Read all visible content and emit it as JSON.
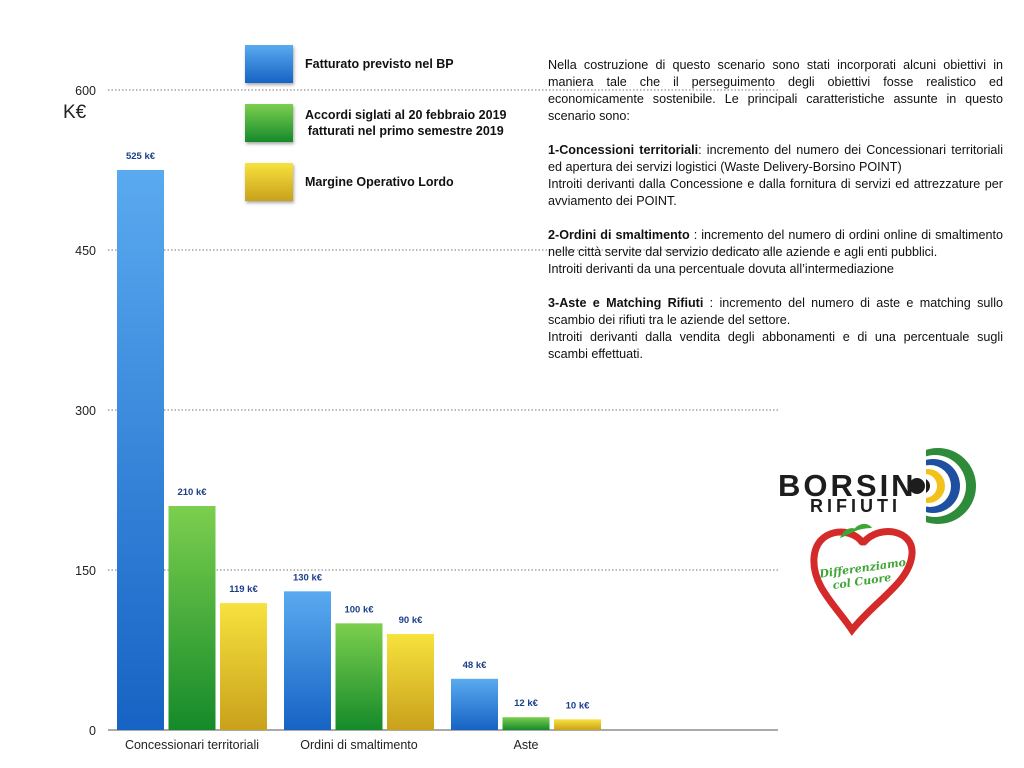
{
  "chart_data": {
    "type": "bar",
    "ylabel": "K€",
    "ylim": [
      0,
      600
    ],
    "yticks": [
      "0",
      "150",
      "300",
      "450",
      "600"
    ],
    "categories": [
      "Concessionari territoriali",
      "Ordini di smaltimento",
      "Aste"
    ],
    "series": [
      {
        "name": "Fatturato previsto nel BP",
        "values": [
          525,
          130,
          48
        ],
        "labels": [
          "525 k€",
          "130 k€",
          "48 k€"
        ],
        "color_top": "#5aaaf0",
        "color_bottom": "#1663c4"
      },
      {
        "name": "Accordi siglati al 20 febbraio 2019 fatturati nel primo semestre 2019",
        "values": [
          210,
          100,
          12
        ],
        "labels": [
          "210 k€",
          "100 k€",
          "12 k€"
        ],
        "color_top": "#7ccf4e",
        "color_bottom": "#158a2a"
      },
      {
        "name": "Margine Operativo Lordo",
        "values": [
          119,
          90,
          10
        ],
        "labels": [
          "119 k€",
          "90 k€",
          "10 k€"
        ],
        "color_top": "#f7e23e",
        "color_bottom": "#c9a11b"
      }
    ],
    "grid": true,
    "legend_position": "top"
  },
  "legend": [
    {
      "line1": "Fatturato previsto nel BP",
      "line2": ""
    },
    {
      "line1": "Accordi siglati al 20 febbraio 2019",
      "line2": "fatturati nel primo semestre 2019"
    },
    {
      "line1": "Margine Operativo Lordo",
      "line2": ""
    }
  ],
  "description": {
    "intro": "Nella costruzione di questo scenario sono stati incorporati alcuni obiettivi in maniera tale che il perseguimento degli obiettivi fosse realistico ed economicamente sostenibile. Le principali caratteristiche assunte in questo scenario sono:",
    "items": [
      {
        "title": "1-Concessioni territoriali",
        "text": ": incremento del numero dei Concessionari territoriali ed apertura dei servizi logistici   (Waste Delivery-Borsino POINT)",
        "detail": "Introiti derivanti dalla Concessione e dalla fornitura di servizi ed attrezzature per avviamento dei POINT."
      },
      {
        "title": "2-Ordini di smaltimento",
        "text": " : incremento del numero di ordini online di smaltimento nelle città servite dal servizio dedicato alle aziende e agli enti pubblici.",
        "detail": "Introiti derivanti da una percentuale dovuta all’intermediazione"
      },
      {
        "title": "3-Aste e Matching Rifiuti",
        "text": " : incremento del numero di aste e matching sullo scambio dei rifiuti tra le aziende del settore.",
        "detail": "Introiti derivanti dalla vendita degli abbonamenti e di una percentuale sugli scambi effettuati."
      }
    ]
  },
  "logos": {
    "borsino_word": "BORSIN",
    "rifiuti_word": "RIFIUTI",
    "heart_text_line1": "Differenziamo",
    "heart_text_line2": "col Cuore"
  }
}
